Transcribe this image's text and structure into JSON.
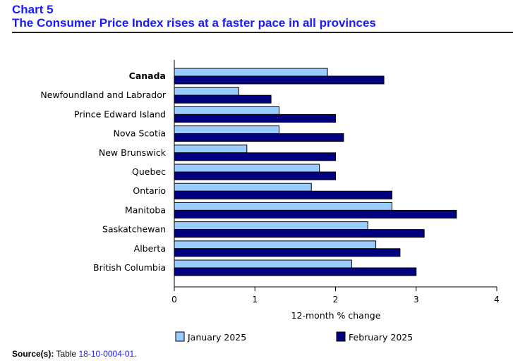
{
  "header": {
    "chart_number": "Chart 5",
    "title": "The Consumer Price Index rises at a faster pace in all provinces"
  },
  "source": {
    "label": "Source(s):",
    "text": "Table",
    "link": "18-10-0004-01",
    "end": "."
  },
  "chart_data": {
    "type": "bar",
    "orientation": "horizontal",
    "title": "The Consumer Price Index rises at a faster pace in all provinces",
    "xlabel": "12-month % change",
    "ylabel": "",
    "xlim": [
      0,
      4
    ],
    "xticks": [
      "0",
      "1",
      "2",
      "3",
      "4"
    ],
    "grid": false,
    "legend_position": "bottom",
    "categories": [
      "Canada",
      "Newfoundland and Labrador",
      "Prince Edward Island",
      "Nova Scotia",
      "New Brunswick",
      "Quebec",
      "Ontario",
      "Manitoba",
      "Saskatchewan",
      "Alberta",
      "British Columbia"
    ],
    "series": [
      {
        "name": "January 2025",
        "color": "#99ccff",
        "values": [
          1.9,
          0.8,
          1.3,
          1.3,
          0.9,
          1.8,
          1.7,
          2.7,
          2.4,
          2.5,
          2.2
        ]
      },
      {
        "name": "February 2025",
        "color": "#000080",
        "values": [
          2.6,
          1.2,
          2.0,
          2.1,
          2.0,
          2.0,
          2.7,
          3.5,
          3.1,
          2.8,
          3.0
        ]
      }
    ]
  }
}
